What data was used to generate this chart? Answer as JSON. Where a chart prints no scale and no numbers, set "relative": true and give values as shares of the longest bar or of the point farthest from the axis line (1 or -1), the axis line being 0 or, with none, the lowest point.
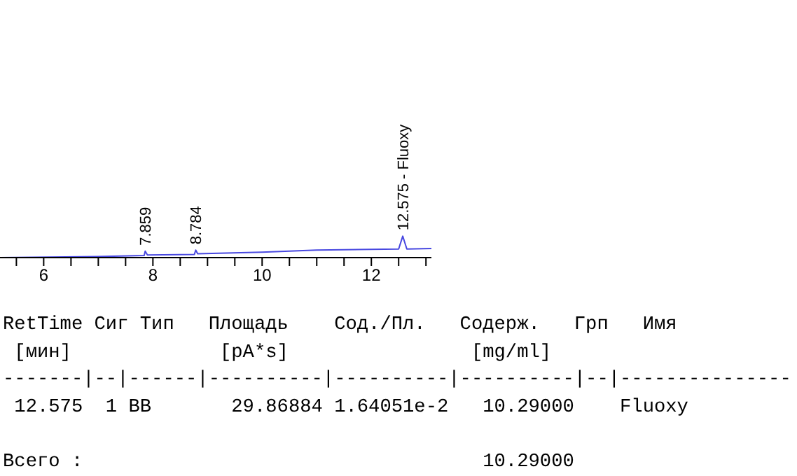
{
  "chart_data": {
    "type": "line",
    "relative": true,
    "x": [
      5.2,
      7.0,
      7.84,
      7.859,
      7.9,
      8.76,
      8.784,
      8.82,
      10.0,
      11.0,
      12.5,
      12.575,
      12.65,
      13.1
    ],
    "series": [
      {
        "color": "#4848e0",
        "values": [
          0,
          0.05,
          0.1,
          0.3,
          0.12,
          0.15,
          0.35,
          0.18,
          0.25,
          0.35,
          0.4,
          1,
          0.4,
          0.42
        ]
      }
    ],
    "xlim": [
      5.2,
      13.1
    ],
    "xticks": [
      {
        "value": 5.5,
        "label": null
      },
      6,
      {
        "value": 6.5,
        "label": null
      },
      {
        "value": 7,
        "label": null
      },
      {
        "value": 7.5,
        "label": null
      },
      8,
      {
        "value": 8.5,
        "label": null
      },
      {
        "value": 9,
        "label": null
      },
      {
        "value": 9.5,
        "label": null
      },
      10,
      {
        "value": 10.5,
        "label": null
      },
      {
        "value": 11,
        "label": null
      },
      {
        "value": 11.5,
        "label": null
      },
      12,
      {
        "value": 12.5,
        "label": null
      },
      {
        "value": 13,
        "label": null
      }
    ],
    "tick_labels": "x",
    "marker": "none",
    "line_style": "solid",
    "annotations": [
      {
        "text": "7.859",
        "x": 7.859,
        "y": 0.3
      },
      {
        "text": "8.784",
        "x": 8.784,
        "y": 0.35
      },
      {
        "text": "12.575 - Fluoxy",
        "x": 12.575,
        "y": 1
      },
      "RetTime Сиг Тип   Площадь    Сод./Пл.   Содерж.   Грп   Имя",
      " [мин]             [pA*s]                [mg/ml]",
      "-------|--|------|----------|----------|----------|--|---------------",
      " 12.575  1 BB       29.86884 1.64051e-2   10.29000    Fluoxy",
      "Всего :                                   10.29000"
    ]
  }
}
